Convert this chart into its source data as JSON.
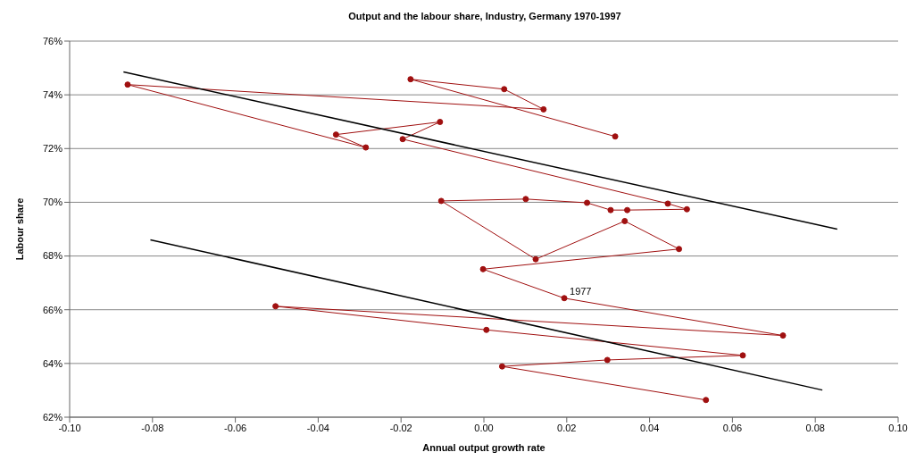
{
  "chart_data": {
    "type": "line",
    "title": "Output and the labour share, Industry, Germany 1970-1997",
    "xlabel": "Annual output growth rate",
    "ylabel": "Labour share",
    "xlim": [
      -0.1,
      0.1
    ],
    "xticks": [
      {
        "value": -0.1,
        "label": "-0.10"
      },
      {
        "value": -0.08,
        "label": "-0.08"
      },
      {
        "value": -0.06,
        "label": "-0.06"
      },
      {
        "value": -0.04,
        "label": "-0.04"
      },
      {
        "value": -0.02,
        "label": "-0.02"
      },
      {
        "value": 0,
        "label": "0.00"
      },
      {
        "value": 0.02,
        "label": "0.02"
      },
      {
        "value": 0.04,
        "label": "0.04"
      },
      {
        "value": 0.06,
        "label": "0.06"
      },
      {
        "value": 0.08,
        "label": "0.08"
      },
      {
        "value": 0.1,
        "label": "0.10"
      }
    ],
    "ylim": [
      62,
      76
    ],
    "yticks": [
      {
        "value": 62,
        "label": "62%"
      },
      {
        "value": 64,
        "label": "64%"
      },
      {
        "value": 66,
        "label": "66%"
      },
      {
        "value": 68,
        "label": "68%"
      },
      {
        "value": 70,
        "label": "70%"
      },
      {
        "value": 72,
        "label": "72%"
      },
      {
        "value": 74,
        "label": "74%"
      },
      {
        "value": 76,
        "label": "76%"
      }
    ],
    "grid": "y",
    "line_style": "solid",
    "series": [
      {
        "color": "#a01010",
        "marker": "circle",
        "x": [
          0.0536,
          0.0044,
          0.0298,
          0.0625,
          0.0006,
          -0.0503,
          0.0722,
          0.0194,
          -0.0002,
          0.0471,
          0.034,
          0.0125,
          -0.0103,
          0.0101,
          0.0249,
          0.0306,
          0.0346,
          0.049,
          0.0444,
          -0.0196,
          -0.0106,
          -0.0357,
          -0.0285,
          -0.086,
          0.0144,
          0.0049,
          -0.0177,
          0.0317
        ],
        "values": [
          62.64,
          63.89,
          64.13,
          64.3,
          65.25,
          66.13,
          65.04,
          66.43,
          67.51,
          68.26,
          69.3,
          67.88,
          70.05,
          70.12,
          69.98,
          69.71,
          69.71,
          69.74,
          69.95,
          72.35,
          72.99,
          72.52,
          72.04,
          74.38,
          73.46,
          74.21,
          74.58,
          72.45
        ]
      },
      {
        "color": "#000000",
        "marker": "none",
        "x": [
          -0.087,
          0.0853
        ],
        "values": [
          74.85,
          69.0
        ]
      },
      {
        "color": "#000000",
        "marker": "none",
        "x": [
          -0.0805,
          0.0817
        ],
        "values": [
          68.6,
          63.01
        ]
      }
    ],
    "annotations": [
      {
        "text": "1977",
        "x": 0.0194,
        "y": 66.43
      }
    ]
  }
}
